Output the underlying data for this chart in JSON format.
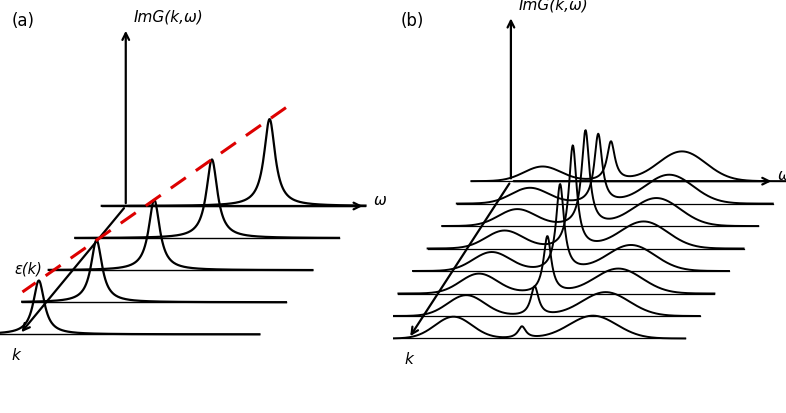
{
  "fig_width": 7.86,
  "fig_height": 4.14,
  "background_color": "#ffffff",
  "panel_a_label": "(a)",
  "panel_b_label": "(b)",
  "ylabel": "ImG(k,ω)",
  "xlabel_omega": "ω",
  "xlabel_k": "k",
  "epsilon_label": "ε(k)",
  "num_curves_a": 5,
  "num_curves_b": 8,
  "line_color": "#000000",
  "dashed_color": "#dd0000",
  "font_size_label": 11,
  "font_size_panel": 12
}
